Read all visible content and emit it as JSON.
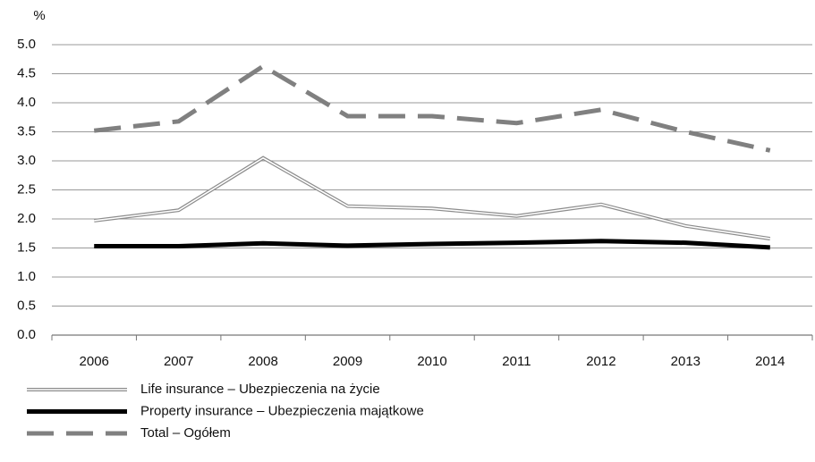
{
  "chart_data": {
    "type": "line",
    "y_label": "%",
    "categories": [
      "2006",
      "2007",
      "2008",
      "2009",
      "2010",
      "2011",
      "2012",
      "2013",
      "2014"
    ],
    "series": [
      {
        "name": "Life insurance – Ubezpieczenia na życie",
        "color": "#8c8c8c",
        "style": "double",
        "values": [
          1.97,
          2.15,
          3.05,
          2.22,
          2.18,
          2.05,
          2.25,
          1.88,
          1.66
        ]
      },
      {
        "name": "Property insurance – Ubezpieczenia majątkowe",
        "color": "#000000",
        "style": "solid",
        "values": [
          1.53,
          1.53,
          1.58,
          1.54,
          1.57,
          1.59,
          1.62,
          1.59,
          1.51
        ]
      },
      {
        "name": "Total – Ogółem",
        "color": "#808080",
        "style": "dashed",
        "values": [
          3.52,
          3.68,
          4.63,
          3.77,
          3.77,
          3.65,
          3.88,
          3.5,
          3.18
        ]
      }
    ],
    "ylim": [
      0,
      5
    ],
    "yticks": [
      {
        "value": 0,
        "label": "0.0"
      },
      0.5,
      {
        "value": 1,
        "label": "1.0"
      },
      1.5,
      {
        "value": 2,
        "label": "2.0"
      },
      2.5,
      {
        "value": 3,
        "label": "3.0"
      },
      3.5,
      {
        "value": 4,
        "label": "4.0"
      },
      4.5,
      {
        "value": 5,
        "label": "5.0"
      }
    ],
    "grid": true
  }
}
